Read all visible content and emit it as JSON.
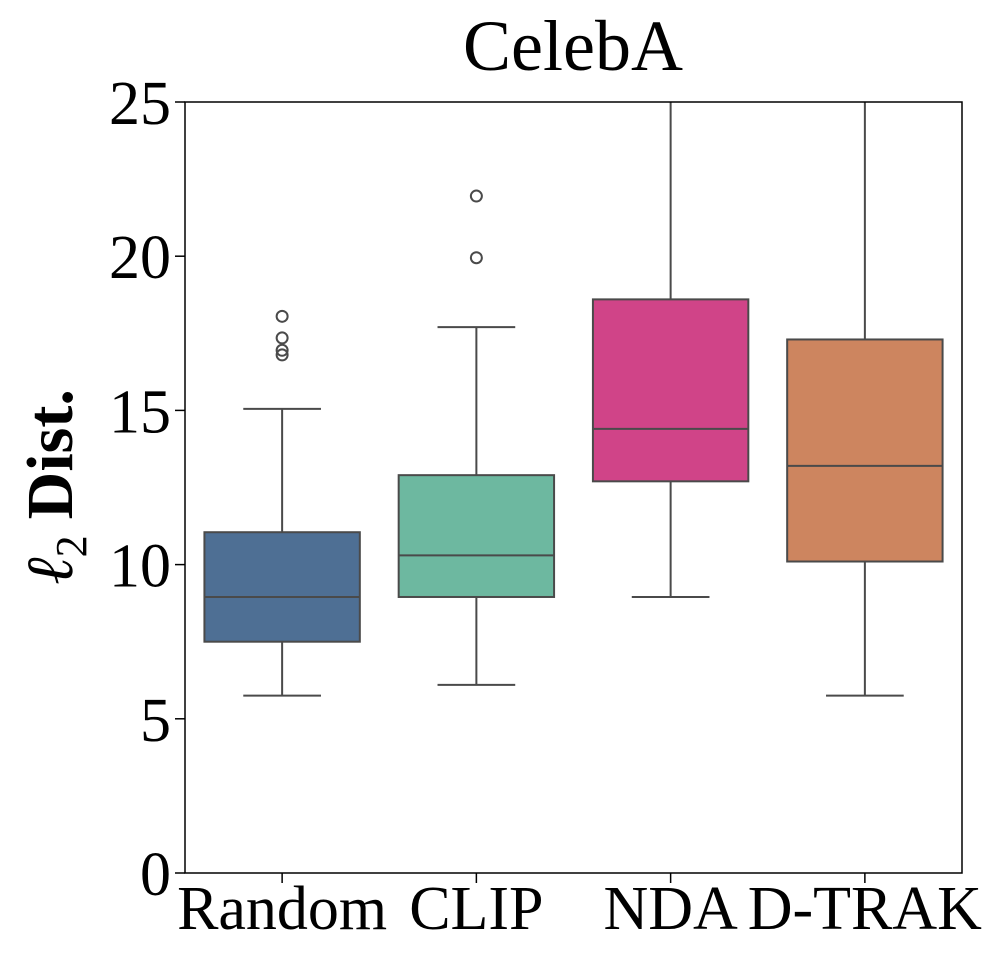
{
  "chart_data": {
    "type": "box",
    "title": "CelebA",
    "ylabel_symbol": "ℓ",
    "ylabel_subscript": "2",
    "ylabel_text": "Dist.",
    "xlabel": "",
    "ylim": [
      0,
      25
    ],
    "yticks": [
      0,
      5,
      10,
      15,
      20,
      25
    ],
    "grid": false,
    "categories": [
      "Random",
      "CLIP",
      "NDA",
      "D-TRAK"
    ],
    "series": [
      {
        "name": "Random",
        "color": "#4e6f94",
        "whisker_low": 5.75,
        "q1": 7.5,
        "median": 8.95,
        "q3": 11.05,
        "whisker_high": 15.05,
        "outliers": [
          16.8,
          16.95,
          17.35,
          18.05
        ]
      },
      {
        "name": "CLIP",
        "color": "#6db8a0",
        "whisker_low": 6.1,
        "q1": 8.95,
        "median": 10.3,
        "q3": 12.9,
        "whisker_high": 17.7,
        "outliers": [
          19.95,
          21.95
        ]
      },
      {
        "name": "NDA",
        "color": "#d04488",
        "whisker_low": 8.95,
        "q1": 12.7,
        "median": 14.4,
        "q3": 18.6,
        "whisker_high": 25.0,
        "outliers": []
      },
      {
        "name": "D-TRAK",
        "color": "#cd855f",
        "whisker_low": 5.75,
        "q1": 10.1,
        "median": 13.2,
        "q3": 17.3,
        "whisker_high": 25.0,
        "outliers": []
      }
    ]
  }
}
